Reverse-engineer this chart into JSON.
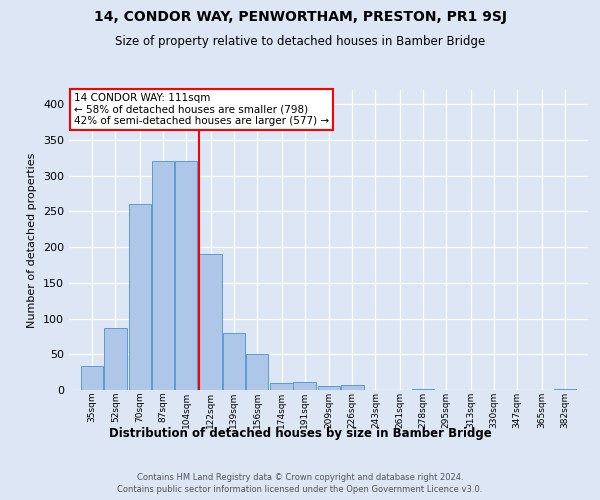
{
  "title": "14, CONDOR WAY, PENWORTHAM, PRESTON, PR1 9SJ",
  "subtitle": "Size of property relative to detached houses in Bamber Bridge",
  "xlabel": "Distribution of detached houses by size in Bamber Bridge",
  "ylabel": "Number of detached properties",
  "footer_line1": "Contains HM Land Registry data © Crown copyright and database right 2024.",
  "footer_line2": "Contains public sector information licensed under the Open Government Licence v3.0.",
  "bar_labels": [
    "35sqm",
    "52sqm",
    "70sqm",
    "87sqm",
    "104sqm",
    "122sqm",
    "139sqm",
    "156sqm",
    "174sqm",
    "191sqm",
    "209sqm",
    "226sqm",
    "243sqm",
    "261sqm",
    "278sqm",
    "295sqm",
    "313sqm",
    "330sqm",
    "347sqm",
    "365sqm",
    "382sqm"
  ],
  "bar_values": [
    33,
    87,
    260,
    320,
    320,
    190,
    80,
    50,
    10,
    11,
    5,
    7,
    0,
    0,
    2,
    0,
    0,
    0,
    0,
    0,
    2
  ],
  "bar_color": "#aec6e8",
  "bar_edgecolor": "#5b9bd5",
  "bg_color": "#dce6f5",
  "grid_color": "#ffffff",
  "annotation_label": "14 CONDOR WAY: 111sqm",
  "annotation_line2": "← 58% of detached houses are smaller (798)",
  "annotation_line3": "42% of semi-detached houses are larger (577) →",
  "redline_x": 113.5,
  "ylim": [
    0,
    420
  ],
  "yticks": [
    0,
    50,
    100,
    150,
    200,
    250,
    300,
    350,
    400
  ],
  "bin_centers": [
    35,
    52,
    70,
    87,
    104,
    122,
    139,
    156,
    174,
    191,
    209,
    226,
    243,
    261,
    278,
    295,
    313,
    330,
    347,
    365,
    382
  ],
  "bin_width": 17
}
